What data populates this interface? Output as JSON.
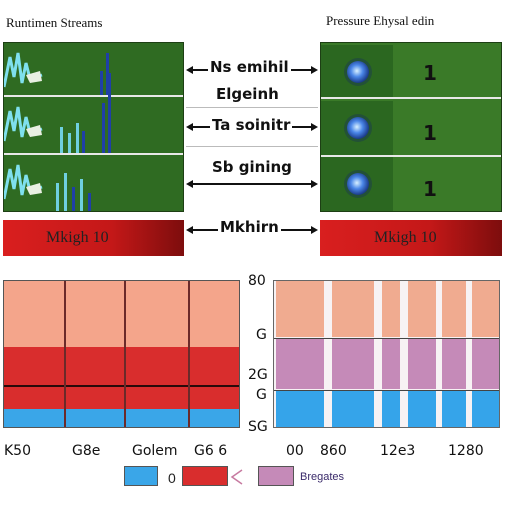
{
  "top": {
    "left_title": "Runtimen Streams",
    "right_title": "Pressure Ehysal edin"
  },
  "connectors": [
    {
      "label": "Ns emihil"
    },
    {
      "label": "Elgeinh"
    },
    {
      "label": "Ta soinitr"
    },
    {
      "label": "Sb gining"
    },
    {
      "label": "Mkhirn"
    }
  ],
  "right_panel": {
    "rows": [
      {
        "value": "1"
      },
      {
        "value": "1"
      },
      {
        "value": "1"
      }
    ]
  },
  "red_bars": {
    "left_label": "Mkigh 10",
    "right_label": "Mkigh 10"
  },
  "bottom_left": {
    "x_ticks": [
      "K50",
      "G8e",
      "Golem",
      "G6 6"
    ],
    "bands": [
      {
        "color": "#f4a58b"
      },
      {
        "color": "#d92d2d"
      },
      {
        "color": "#3aa6e8"
      }
    ]
  },
  "bottom_right": {
    "y_ticks": [
      "80",
      "G",
      "2G",
      "G",
      "SG"
    ],
    "x_ticks": [
      "00",
      "860",
      "12e3",
      "1280"
    ],
    "colors": {
      "top": "#f0ab90",
      "mid": "#c58ab8",
      "bottom": "#35a4ea",
      "bg": "#f7f2f4"
    }
  },
  "legend": {
    "items": [
      {
        "symbol": "",
        "color": "#3aa6e8"
      },
      {
        "symbol": "0",
        "color": "#d92d2d"
      },
      {
        "symbol": "",
        "color": "#c58ab8"
      }
    ],
    "label": "Bregates"
  },
  "colors": {
    "panel_green": "#2f6b22",
    "accent_red": "#d91f1f"
  }
}
